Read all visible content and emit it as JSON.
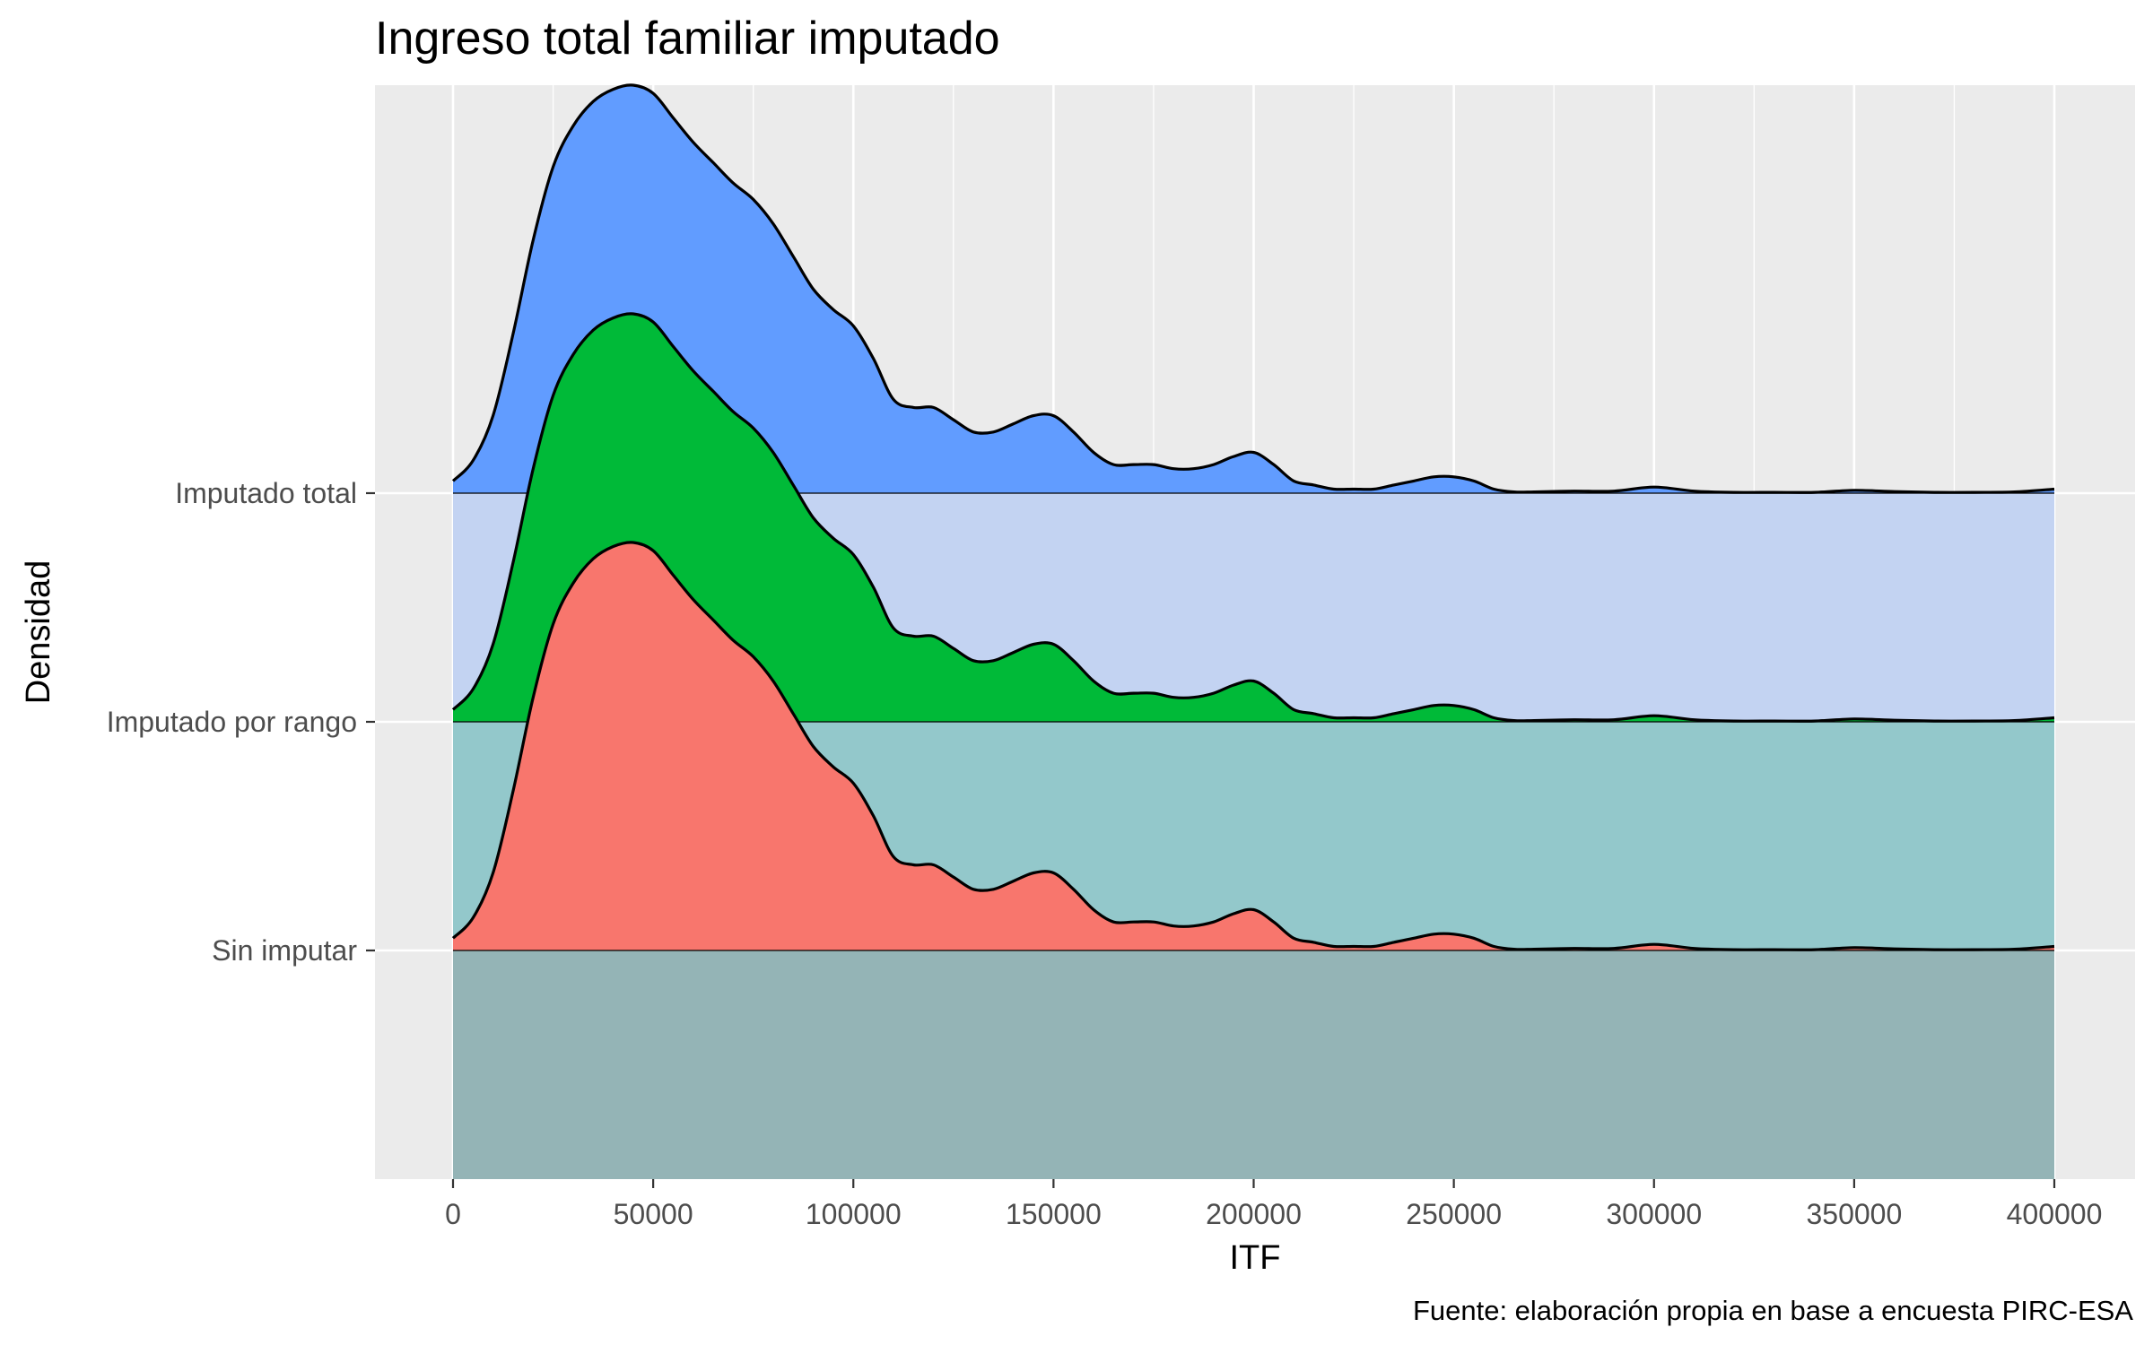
{
  "chart_data": {
    "type": "ridgeline",
    "title": "Ingreso total familiar imputado",
    "xlabel": "ITF",
    "ylabel": "Densidad",
    "caption": "Fuente: elaboración propia en base a encuesta PIRC-ESA",
    "xlim": [
      -20000,
      420000
    ],
    "x_ticks": [
      0,
      50000,
      100000,
      150000,
      200000,
      250000,
      300000,
      350000,
      400000
    ],
    "x_tick_labels": [
      "0",
      "50000",
      "100000",
      "150000",
      "200000",
      "250000",
      "300000",
      "350000",
      "400000"
    ],
    "categories": [
      "Sin imputar",
      "Imputado por rango",
      "Imputado total"
    ],
    "grid": true,
    "legend": "none",
    "panel_background": "#ebebeb",
    "band_colors": [
      "#94b4b6",
      "#93c8cb",
      "#c3d3f2"
    ],
    "series": [
      {
        "name": "Sin imputar",
        "color": "#f8766d",
        "x": [
          0,
          5000,
          10000,
          15000,
          20000,
          25000,
          30000,
          35000,
          40000,
          45000,
          50000,
          55000,
          60000,
          65000,
          70000,
          75000,
          80000,
          85000,
          90000,
          95000,
          100000,
          105000,
          110000,
          115000,
          120000,
          125000,
          130000,
          135000,
          140000,
          145000,
          150000,
          155000,
          160000,
          165000,
          170000,
          175000,
          180000,
          185000,
          190000,
          195000,
          200000,
          205000,
          210000,
          215000,
          220000,
          225000,
          230000,
          235000,
          240000,
          245000,
          250000,
          255000,
          260000,
          265000,
          270000,
          280000,
          290000,
          300000,
          310000,
          320000,
          330000,
          340000,
          350000,
          360000,
          370000,
          380000,
          390000,
          400000
        ],
        "density": [
          0.03,
          0.08,
          0.19,
          0.39,
          0.62,
          0.8,
          0.9,
          0.96,
          0.99,
          1.0,
          0.98,
          0.92,
          0.86,
          0.81,
          0.76,
          0.72,
          0.66,
          0.58,
          0.5,
          0.45,
          0.41,
          0.33,
          0.23,
          0.21,
          0.21,
          0.18,
          0.15,
          0.15,
          0.17,
          0.19,
          0.19,
          0.15,
          0.1,
          0.07,
          0.07,
          0.07,
          0.06,
          0.06,
          0.07,
          0.09,
          0.1,
          0.07,
          0.03,
          0.02,
          0.01,
          0.01,
          0.01,
          0.02,
          0.03,
          0.04,
          0.04,
          0.03,
          0.01,
          0.003,
          0.003,
          0.005,
          0.005,
          0.015,
          0.005,
          0.002,
          0.002,
          0.002,
          0.007,
          0.004,
          0.002,
          0.002,
          0.003,
          0.01
        ]
      },
      {
        "name": "Imputado por rango",
        "color": "#00ba38",
        "x": [
          0,
          5000,
          10000,
          15000,
          20000,
          25000,
          30000,
          35000,
          40000,
          45000,
          50000,
          55000,
          60000,
          65000,
          70000,
          75000,
          80000,
          85000,
          90000,
          95000,
          100000,
          105000,
          110000,
          115000,
          120000,
          125000,
          130000,
          135000,
          140000,
          145000,
          150000,
          155000,
          160000,
          165000,
          170000,
          175000,
          180000,
          185000,
          190000,
          195000,
          200000,
          205000,
          210000,
          215000,
          220000,
          225000,
          230000,
          235000,
          240000,
          245000,
          250000,
          255000,
          260000,
          265000,
          270000,
          280000,
          290000,
          300000,
          310000,
          320000,
          330000,
          340000,
          350000,
          360000,
          370000,
          380000,
          390000,
          400000
        ],
        "density": [
          0.03,
          0.08,
          0.19,
          0.39,
          0.62,
          0.8,
          0.9,
          0.96,
          0.99,
          1.0,
          0.98,
          0.92,
          0.86,
          0.81,
          0.76,
          0.72,
          0.66,
          0.58,
          0.5,
          0.45,
          0.41,
          0.33,
          0.23,
          0.21,
          0.21,
          0.18,
          0.15,
          0.15,
          0.17,
          0.19,
          0.19,
          0.15,
          0.1,
          0.07,
          0.07,
          0.07,
          0.06,
          0.06,
          0.07,
          0.09,
          0.1,
          0.07,
          0.03,
          0.02,
          0.01,
          0.01,
          0.01,
          0.02,
          0.03,
          0.04,
          0.04,
          0.03,
          0.01,
          0.003,
          0.003,
          0.005,
          0.005,
          0.015,
          0.005,
          0.002,
          0.002,
          0.002,
          0.007,
          0.004,
          0.002,
          0.002,
          0.003,
          0.01
        ]
      },
      {
        "name": "Imputado total",
        "color": "#619cff",
        "x": [
          0,
          5000,
          10000,
          15000,
          20000,
          25000,
          30000,
          35000,
          40000,
          45000,
          50000,
          55000,
          60000,
          65000,
          70000,
          75000,
          80000,
          85000,
          90000,
          95000,
          100000,
          105000,
          110000,
          115000,
          120000,
          125000,
          130000,
          135000,
          140000,
          145000,
          150000,
          155000,
          160000,
          165000,
          170000,
          175000,
          180000,
          185000,
          190000,
          195000,
          200000,
          205000,
          210000,
          215000,
          220000,
          225000,
          230000,
          235000,
          240000,
          245000,
          250000,
          255000,
          260000,
          265000,
          270000,
          280000,
          290000,
          300000,
          310000,
          320000,
          330000,
          340000,
          350000,
          360000,
          370000,
          380000,
          390000,
          400000
        ],
        "density": [
          0.03,
          0.08,
          0.19,
          0.39,
          0.62,
          0.8,
          0.9,
          0.96,
          0.99,
          1.0,
          0.98,
          0.92,
          0.86,
          0.81,
          0.76,
          0.72,
          0.66,
          0.58,
          0.5,
          0.45,
          0.41,
          0.33,
          0.23,
          0.21,
          0.21,
          0.18,
          0.15,
          0.15,
          0.17,
          0.19,
          0.19,
          0.15,
          0.1,
          0.07,
          0.07,
          0.07,
          0.06,
          0.06,
          0.07,
          0.09,
          0.1,
          0.07,
          0.03,
          0.02,
          0.01,
          0.01,
          0.01,
          0.02,
          0.03,
          0.04,
          0.04,
          0.03,
          0.01,
          0.003,
          0.003,
          0.005,
          0.005,
          0.015,
          0.005,
          0.002,
          0.002,
          0.002,
          0.007,
          0.004,
          0.002,
          0.002,
          0.003,
          0.01
        ]
      }
    ]
  }
}
